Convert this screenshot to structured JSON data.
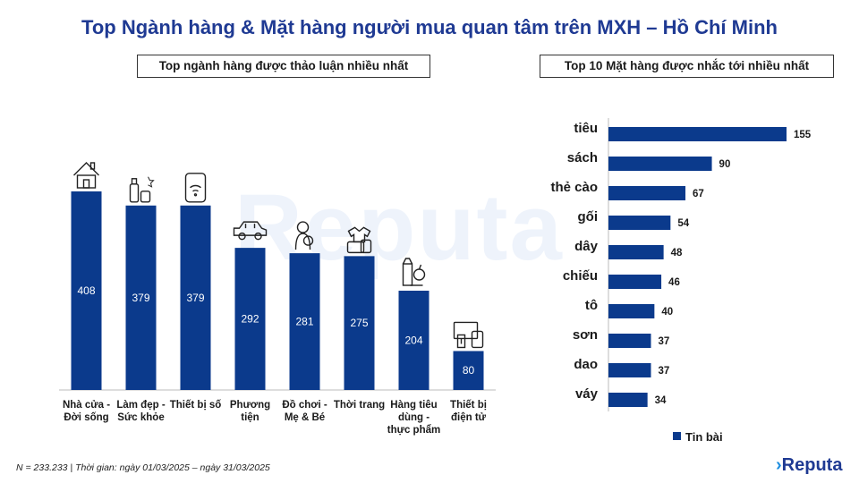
{
  "title": "Top Ngành hàng & Mặt hàng người mua quan tâm trên MXH – Hồ Chí Minh",
  "watermark": "Reputa",
  "footnote": "N = 233.233 | Thời gian: ngày 01/03/2025 – ngày 31/03/2025",
  "logo": "Reputa",
  "colors": {
    "bar": "#0b3a8c",
    "title": "#1f3a93",
    "accent": "#1f8fe0"
  },
  "chart_data": [
    {
      "type": "bar",
      "title": "Top ngành hàng được thảo luận nhiều nhất",
      "categories": [
        [
          "Nhà cửa -",
          "Đời sống"
        ],
        [
          "Làm đẹp -",
          "Sức khỏe"
        ],
        [
          "Thiết bị số"
        ],
        [
          "Phương",
          "tiện"
        ],
        [
          "Đồ chơi -",
          "Mẹ & Bé"
        ],
        [
          "Thời trang"
        ],
        [
          "Hàng tiêu",
          "dùng -",
          "thực phẩm"
        ],
        [
          "Thiết bị",
          "điện tử"
        ]
      ],
      "icons": [
        "house-icon",
        "cosmetics-icon",
        "smartphone-wifi-icon",
        "car-icon",
        "mother-baby-icon",
        "clothing-icon",
        "grocery-icon",
        "electronics-icon"
      ],
      "values": [
        408,
        379,
        379,
        292,
        281,
        275,
        204,
        80
      ],
      "ylim": [
        0,
        408
      ],
      "grid": false
    },
    {
      "type": "bar",
      "orientation": "horizontal",
      "title": "Top 10 Mặt hàng được nhắc tới nhiều nhất",
      "categories": [
        "tiêu",
        "sách",
        "thẻ cào",
        "gối",
        "dây",
        "chiếu",
        "tô",
        "sơn",
        "dao",
        "váy"
      ],
      "series": [
        {
          "name": "Tin bài",
          "values": [
            155,
            90,
            67,
            54,
            48,
            46,
            40,
            37,
            37,
            34
          ]
        }
      ],
      "xlim": [
        0,
        155
      ],
      "legend": "bottom-right",
      "grid": false
    }
  ]
}
